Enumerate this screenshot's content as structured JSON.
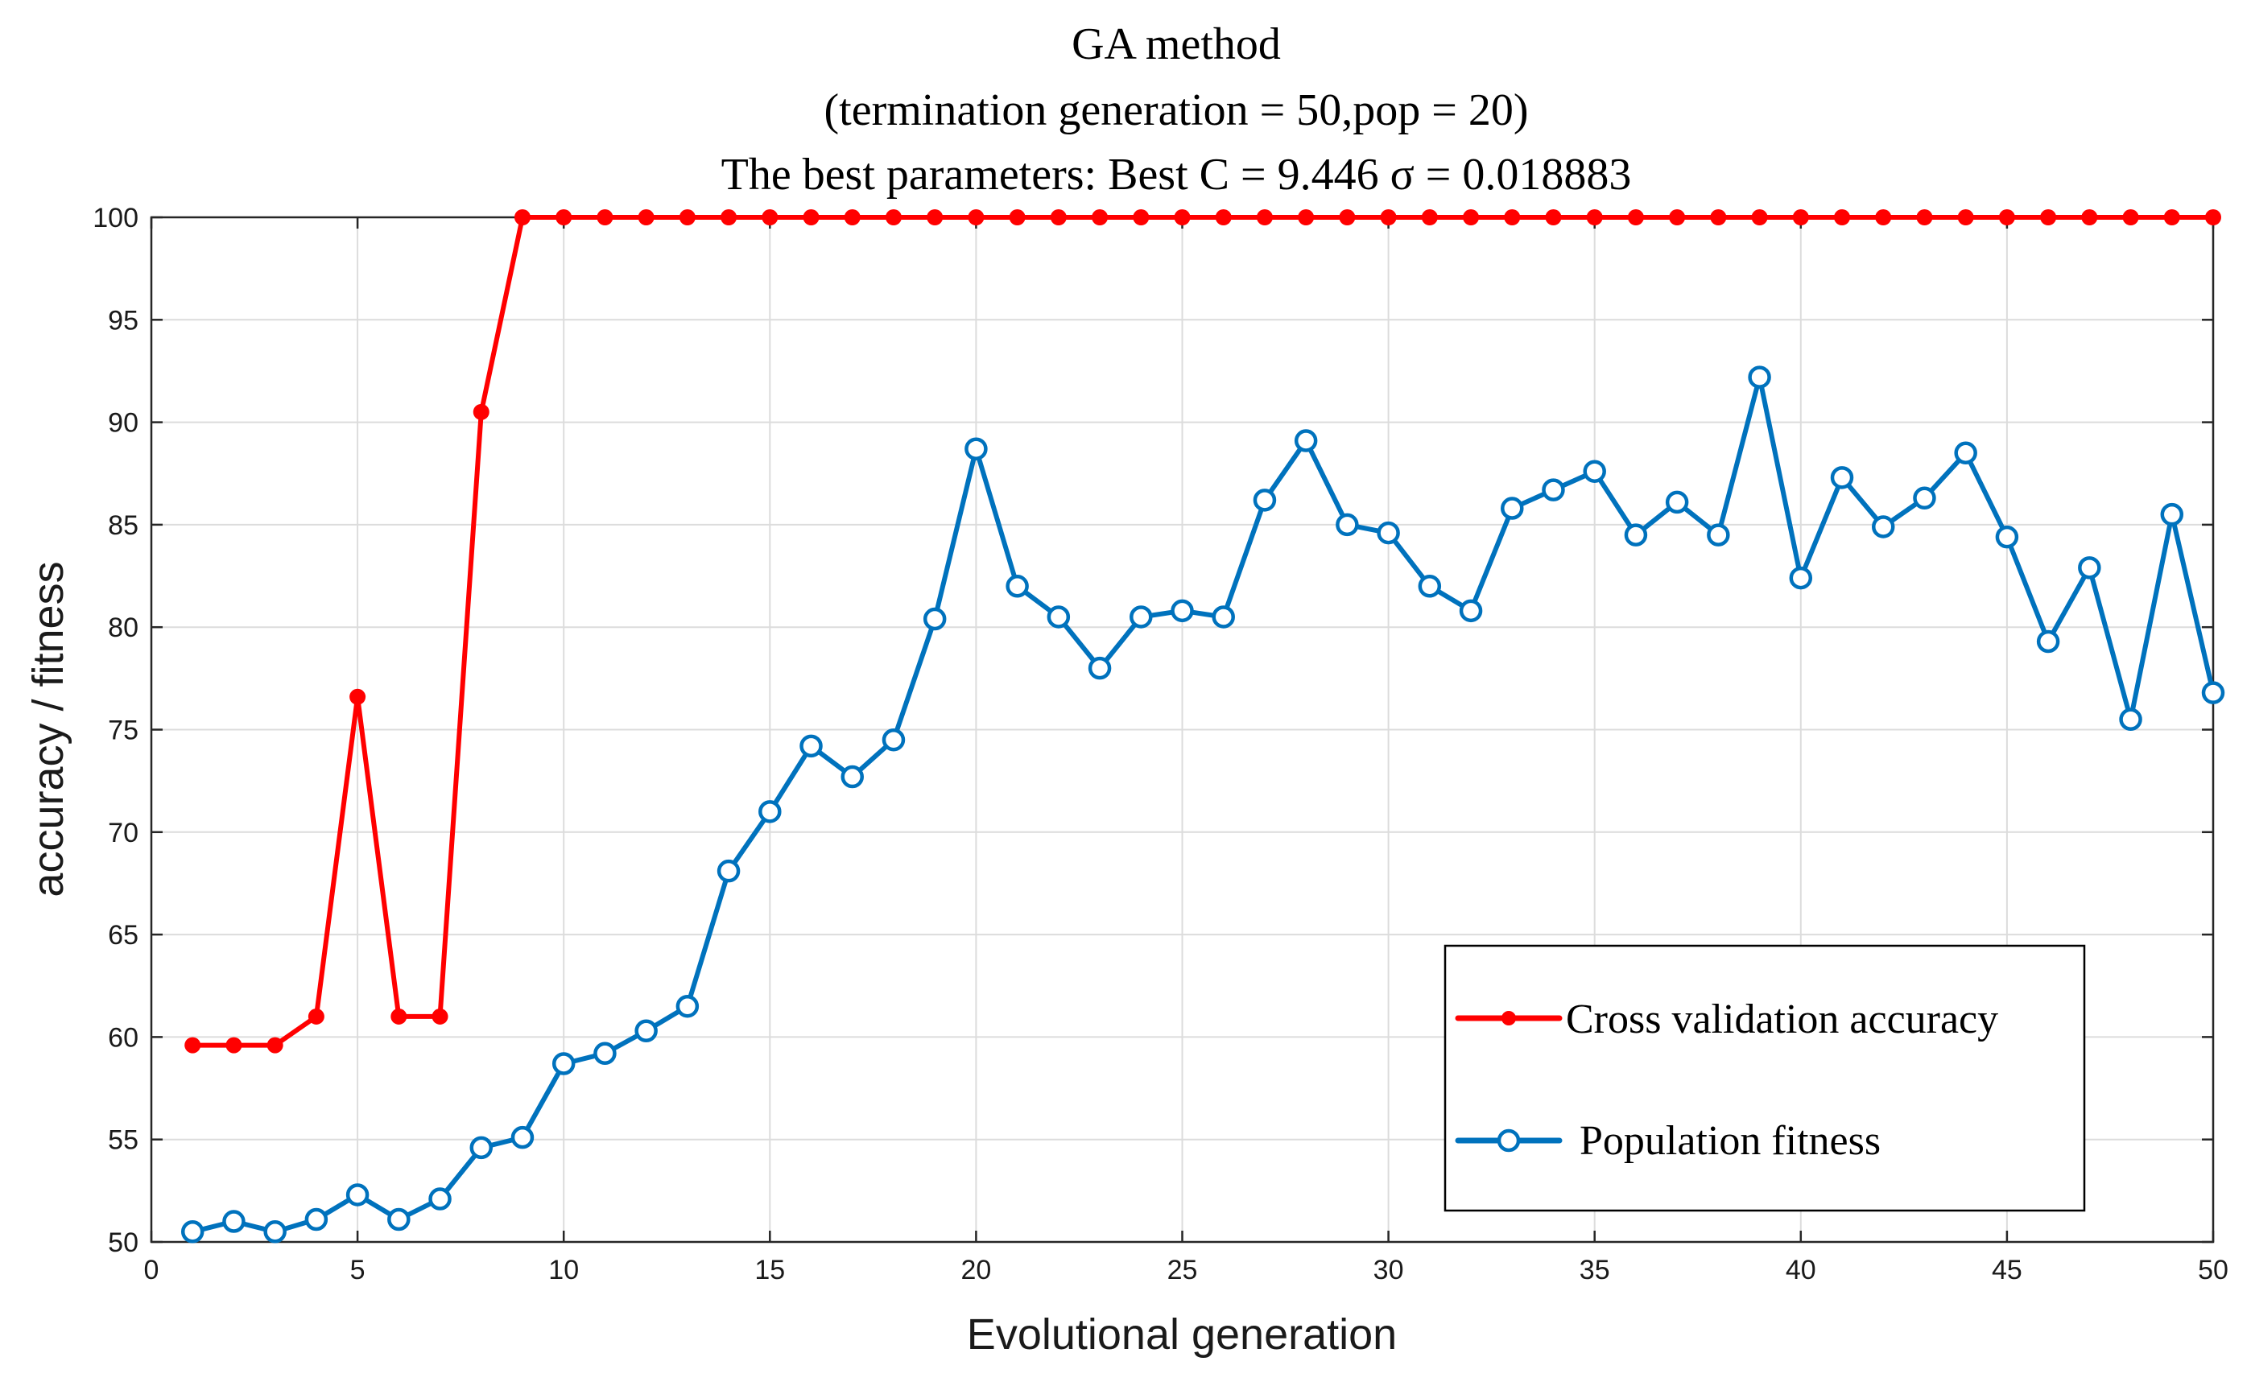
{
  "chart_data": {
    "type": "line",
    "title": [
      "GA method",
      "(termination generation = 50,pop = 20)",
      "The best parameters: Best C = 9.446  σ = 0.018883"
    ],
    "xlabel": "Evolutional generation",
    "ylabel": "accuracy / fitness",
    "xlim": [
      0,
      50
    ],
    "ylim": [
      50,
      100
    ],
    "xticks": [
      0,
      5,
      10,
      15,
      20,
      25,
      30,
      35,
      40,
      45,
      50
    ],
    "yticks": [
      50,
      55,
      60,
      65,
      70,
      75,
      80,
      85,
      90,
      95,
      100
    ],
    "grid": true,
    "legend_position": "bottom-right",
    "x": [
      1,
      2,
      3,
      4,
      5,
      6,
      7,
      8,
      9,
      10,
      11,
      12,
      13,
      14,
      15,
      16,
      17,
      18,
      19,
      20,
      21,
      22,
      23,
      24,
      25,
      26,
      27,
      28,
      29,
      30,
      31,
      32,
      33,
      34,
      35,
      36,
      37,
      38,
      39,
      40,
      41,
      42,
      43,
      44,
      45,
      46,
      47,
      48,
      49,
      50
    ],
    "series": [
      {
        "name": "Cross validation accuracy",
        "color": "#ff0000",
        "marker": "filled-circle",
        "values": [
          59.6,
          59.6,
          59.6,
          61.0,
          76.6,
          61.0,
          61.0,
          90.5,
          100,
          100,
          100,
          100,
          100,
          100,
          100,
          100,
          100,
          100,
          100,
          100,
          100,
          100,
          100,
          100,
          100,
          100,
          100,
          100,
          100,
          100,
          100,
          100,
          100,
          100,
          100,
          100,
          100,
          100,
          100,
          100,
          100,
          100,
          100,
          100,
          100,
          100,
          100,
          100,
          100,
          100
        ]
      },
      {
        "name": "Population fitness",
        "color": "#0072bd",
        "marker": "open-circle",
        "values": [
          50.5,
          51.0,
          50.5,
          51.1,
          52.3,
          51.1,
          52.1,
          54.6,
          55.1,
          58.7,
          59.2,
          60.3,
          61.5,
          68.1,
          71.0,
          74.2,
          72.7,
          74.5,
          80.4,
          88.7,
          82.0,
          80.5,
          78.0,
          80.5,
          80.8,
          80.5,
          86.2,
          89.1,
          85.0,
          84.6,
          82.0,
          80.8,
          85.8,
          86.7,
          87.6,
          84.5,
          86.1,
          84.5,
          92.2,
          82.4,
          87.3,
          84.9,
          86.3,
          88.5,
          84.4,
          79.3,
          82.9,
          75.5,
          85.5,
          76.8
        ]
      }
    ]
  }
}
